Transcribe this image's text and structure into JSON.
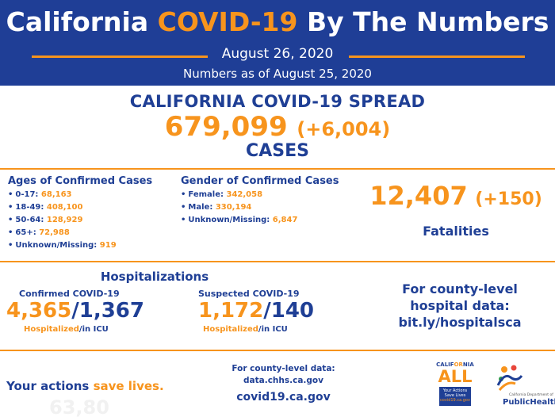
{
  "header": {
    "title_part1": "California",
    "title_accent": "COVID-19",
    "title_part2": "By The Numbers",
    "date": "August 26, 2020",
    "as_of": "Numbers as of August 25, 2020"
  },
  "spread": {
    "heading": "CALIFORNIA COVID-19 SPREAD",
    "cases_total": "679,099",
    "cases_delta": "(+6,004)",
    "cases_label": "CASES"
  },
  "ages": {
    "title": "Ages of Confirmed Cases",
    "items": [
      {
        "label": "0-17:",
        "value": "68,163"
      },
      {
        "label": "18-49:",
        "value": "408,100"
      },
      {
        "label": "50-64:",
        "value": "128,929"
      },
      {
        "label": "65+:",
        "value": "72,988"
      },
      {
        "label": "Unknown/Missing:",
        "value": "919"
      }
    ]
  },
  "gender": {
    "title": "Gender of Confirmed Cases",
    "items": [
      {
        "label": "Female:",
        "value": "342,058"
      },
      {
        "label": "Male:",
        "value": "330,194"
      },
      {
        "label": "Unknown/Missing:",
        "value": "6,847"
      }
    ]
  },
  "fatalities": {
    "total": "12,407",
    "delta": "(+150)",
    "label": "Fatalities"
  },
  "hospitalizations": {
    "title": "Hospitalizations",
    "confirmed": {
      "label": "Confirmed COVID-19",
      "hospitalized": "4,365",
      "separator": "/",
      "icu": "1,367",
      "cap_hosp": "Hospitalized",
      "cap_icu": "/in ICU"
    },
    "suspected": {
      "label": "Suspected COVID-19",
      "hospitalized": "1,172",
      "separator": "/",
      "icu": "140",
      "cap_hosp": "Hospitalized",
      "cap_icu": "/in ICU"
    },
    "county_link": {
      "line1": "For county-level",
      "line2": "hospital data:",
      "line3": "bit.ly/hospitalsca"
    }
  },
  "footer": {
    "actions_part1": "Your actions",
    "actions_accent": "save lives.",
    "ghost_text": "63,80",
    "county_data_line1": "For county-level data:",
    "county_data_line2": "data.chhs.ca.gov",
    "covid_site": "covid19.ca.gov",
    "ca_all": {
      "top_part1": "CALIF",
      "top_accent": "OR",
      "top_part2": "NIA",
      "big": "ALL",
      "box_line1": "Your Actions",
      "box_line2": "Save Lives",
      "box_line3": "covid19.ca.gov"
    },
    "public_health": {
      "small": "California Department of",
      "label": "PublicHealth"
    }
  },
  "colors": {
    "blue": "#1f3f95",
    "orange": "#f7941d"
  }
}
